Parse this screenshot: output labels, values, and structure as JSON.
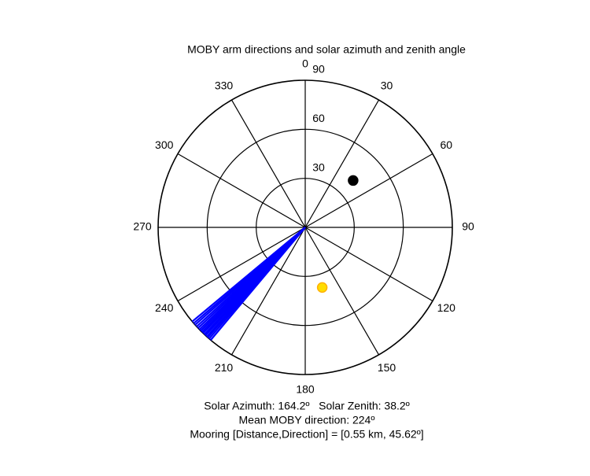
{
  "chart_data": {
    "type": "polar",
    "title": "MOBY arm directions and solar azimuth and zenith angle",
    "direction": "clockwise",
    "zero": "top",
    "rlim": [
      0,
      90
    ],
    "rticks": [
      30,
      60,
      90
    ],
    "thetaticks": [
      0,
      30,
      60,
      90,
      120,
      150,
      180,
      210,
      240,
      270,
      300,
      330
    ],
    "grid": true,
    "series": [
      {
        "style": "line",
        "color": "#0000ff",
        "theta": [
          220,
          220.8,
          221.5,
          222,
          222.7,
          223.3,
          224,
          224.6,
          225.3,
          226,
          226.8,
          227.6,
          228.5,
          229.3,
          230.2
        ],
        "r": [
          90,
          90,
          90,
          90,
          90,
          90,
          90,
          90,
          90,
          90,
          90,
          90,
          90,
          90,
          90
        ]
      },
      {
        "style": "marker",
        "color": "#000000",
        "theta": [
          45.62
        ],
        "r": [
          41
        ]
      },
      {
        "style": "marker",
        "color": "#ffdd00",
        "theta": [
          164.2
        ],
        "r": [
          38.2
        ]
      }
    ],
    "annotations": [
      "Solar Azimuth: 164.2º   Solar Zenith: 38.2º",
      "Mean MOBY direction: 224º",
      "Mooring [Distance,Direction] = [0.55 km, 45.62º]"
    ]
  }
}
